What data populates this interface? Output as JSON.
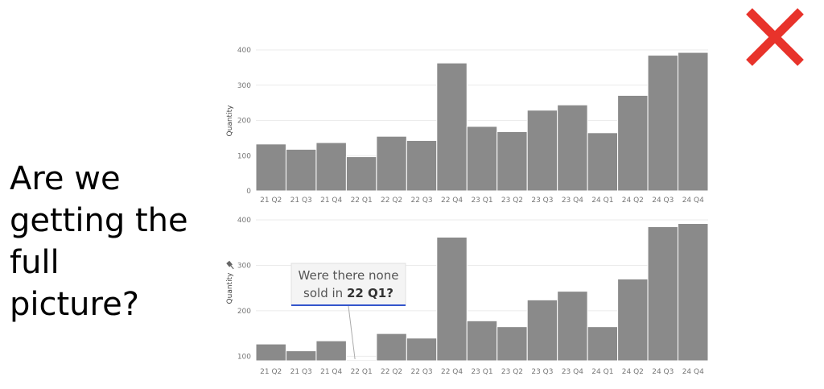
{
  "question_lines": [
    "Are we",
    "getting the",
    "full",
    "picture?"
  ],
  "cross_icon": "cross-mark-icon",
  "colors": {
    "bar": "#8a8a8a",
    "bar_border": "#ffffff",
    "grid": "#ebebeb",
    "cross": "#e8332b",
    "callout_line": "#3355cc"
  },
  "callout": {
    "line1": "Were there none",
    "line2_prefix": "sold in ",
    "line2_bold": "22 Q1?"
  },
  "pin_icon": "pin-icon",
  "chart_data": [
    {
      "type": "bar",
      "title": "",
      "xlabel": "",
      "ylabel": "Quantity",
      "ylim": [
        0,
        400
      ],
      "yticks": [
        0,
        100,
        200,
        300,
        400
      ],
      "categories": [
        "21 Q2",
        "21 Q3",
        "21 Q4",
        "22 Q1",
        "22 Q2",
        "22 Q3",
        "22 Q4",
        "23 Q1",
        "23 Q2",
        "23 Q3",
        "23 Q4",
        "24 Q1",
        "24 Q2",
        "24 Q3",
        "24 Q4"
      ],
      "values": [
        133,
        118,
        137,
        97,
        155,
        143,
        363,
        183,
        168,
        229,
        244,
        165,
        271,
        385,
        393
      ],
      "grid": true
    },
    {
      "type": "bar",
      "title": "",
      "xlabel": "",
      "ylabel": "Quantity",
      "ylim": [
        90,
        400
      ],
      "yticks": [
        100,
        200,
        300,
        400
      ],
      "categories": [
        "21 Q2",
        "21 Q3",
        "21 Q4",
        "22 Q1",
        "22 Q2",
        "22 Q3",
        "22 Q4",
        "23 Q1",
        "23 Q2",
        "23 Q3",
        "23 Q4",
        "24 Q1",
        "24 Q2",
        "24 Q3",
        "24 Q4"
      ],
      "values": [
        127,
        112,
        134,
        92,
        150,
        140,
        362,
        178,
        165,
        224,
        243,
        165,
        270,
        385,
        392
      ],
      "grid": true
    }
  ]
}
